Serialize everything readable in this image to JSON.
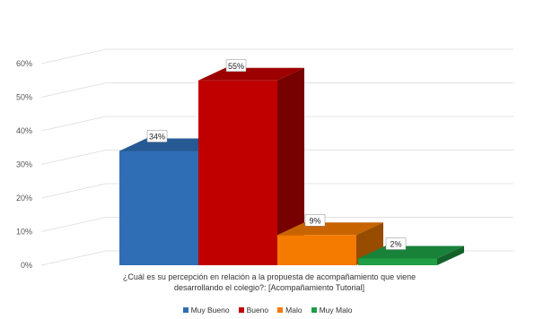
{
  "chart_data": {
    "type": "bar",
    "title": "",
    "xlabel_lines": [
      "¿Cuál es su percepción en relación a la propuesta de acompañamiento que viene",
      "desarrollando el colegio?: [Acompañamiento Tutorial]"
    ],
    "ylabel": "",
    "ylim": [
      0,
      60
    ],
    "yticks": [
      "0%",
      "10%",
      "20%",
      "30%",
      "40%",
      "50%",
      "60%"
    ],
    "grid": true,
    "three_d": true,
    "legend_position": "bottom",
    "series": [
      {
        "name": "Muy Bueno",
        "value": 34,
        "label": "34%",
        "color": "#2f6db5"
      },
      {
        "name": "Bueno",
        "value": 55,
        "label": "55%",
        "color": "#c00000"
      },
      {
        "name": "Malo",
        "value": 9,
        "label": "9%",
        "color": "#f47a00"
      },
      {
        "name": "Muy Malo",
        "value": 2,
        "label": "2%",
        "color": "#1f9e45"
      }
    ]
  }
}
